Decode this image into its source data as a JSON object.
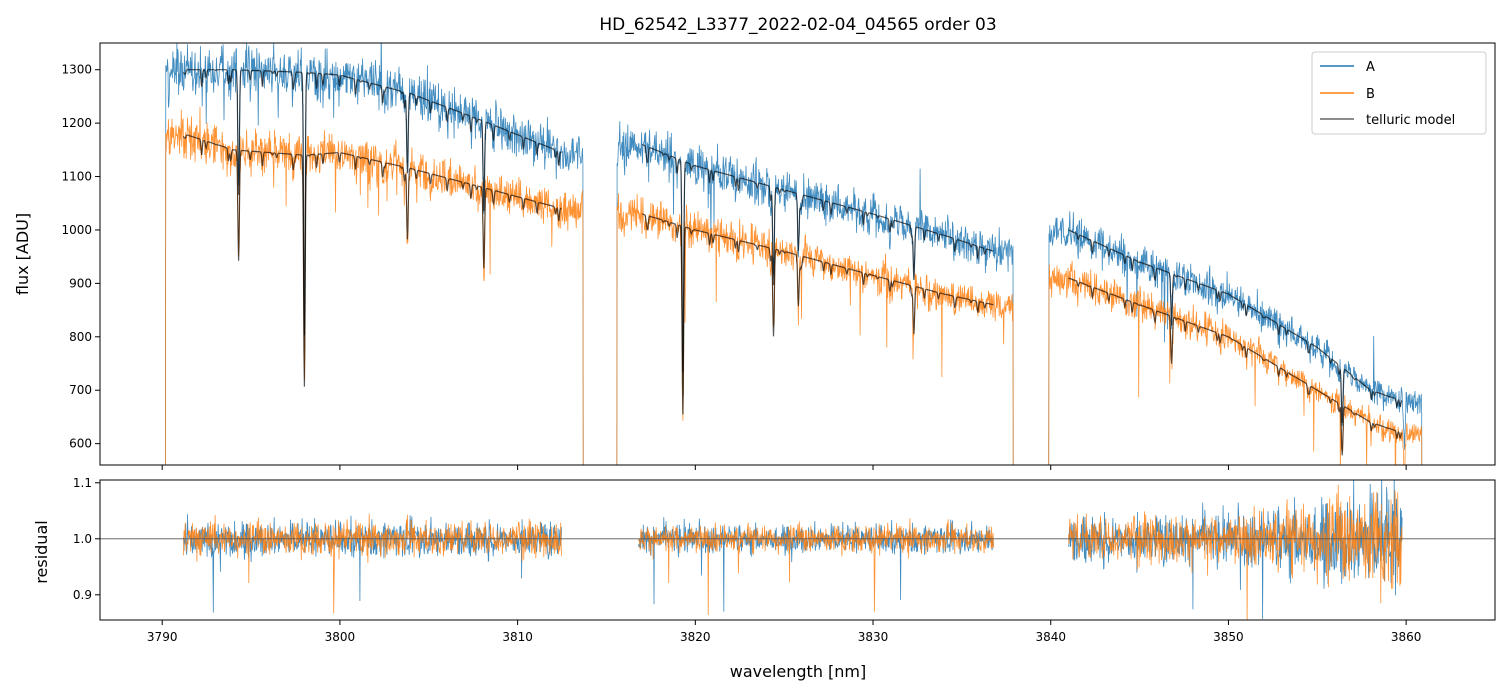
{
  "chart_data": [
    {
      "panel": "top",
      "type": "line",
      "title": "HD_62542_L3377_2022-02-04_04565  order 03",
      "xlabel": "",
      "ylabel": "flux [ADU]",
      "xlim": [
        3786.5,
        3865.0
      ],
      "ylim": [
        560,
        1350
      ],
      "xticks": [
        3790,
        3800,
        3810,
        3820,
        3830,
        3840,
        3850,
        3860
      ],
      "yticks": [
        600,
        700,
        800,
        900,
        1000,
        1100,
        1200,
        1300
      ],
      "legend": {
        "placement": "top-right",
        "entries": [
          "A",
          "B",
          "telluric model"
        ]
      },
      "segments": [
        {
          "x_start": 3790.1,
          "x_end": 3813.8,
          "model_x": [
            3791.2,
            3794,
            3798,
            3800,
            3804,
            3808,
            3812.5
          ],
          "A_cont": [
            1300,
            1300,
            1295,
            1290,
            1255,
            1205,
            1145
          ],
          "B_cont": [
            1180,
            1150,
            1140,
            1145,
            1115,
            1080,
            1040
          ]
        },
        {
          "x_start": 3815.5,
          "x_end": 3838.0,
          "model_x": [
            3817,
            3820,
            3825,
            3830,
            3834,
            3836.8
          ],
          "A_cont": [
            1160,
            1120,
            1075,
            1030,
            990,
            960
          ],
          "B_cont": [
            1030,
            1000,
            960,
            915,
            880,
            860
          ]
        },
        {
          "x_start": 3839.8,
          "x_end": 3861.0,
          "model_x": [
            3841.0,
            3845,
            3850,
            3855,
            3858,
            3859.8
          ],
          "A_cont": [
            1000,
            940,
            880,
            780,
            700,
            680
          ],
          "B_cont": [
            910,
            860,
            800,
            700,
            640,
            620
          ]
        }
      ],
      "absorption_lines": [
        {
          "x": 3794.3,
          "depth": 0.18
        },
        {
          "x": 3798.0,
          "depth": 0.38
        },
        {
          "x": 3803.8,
          "depth": 0.12
        },
        {
          "x": 3808.1,
          "depth": 0.14
        },
        {
          "x": 3819.3,
          "depth": 0.35
        },
        {
          "x": 3824.4,
          "depth": 0.17
        },
        {
          "x": 3825.8,
          "depth": 0.1
        },
        {
          "x": 3832.3,
          "depth": 0.1
        },
        {
          "x": 3846.8,
          "depth": 0.1
        },
        {
          "x": 3856.4,
          "depth": 0.14
        },
        {
          "x": 3859.9,
          "depth": 0.12
        }
      ],
      "series": [
        {
          "name": "A",
          "color": "#1f77b4"
        },
        {
          "name": "B",
          "color": "#ff7f0e"
        },
        {
          "name": "telluric model",
          "color": "#000000"
        }
      ]
    },
    {
      "panel": "bottom",
      "type": "line",
      "title": "",
      "xlabel": "wavelength [nm]",
      "ylabel": "residual",
      "xlim": [
        3786.5,
        3865.0
      ],
      "ylim": [
        0.855,
        1.105
      ],
      "xticks": [
        3790,
        3800,
        3810,
        3820,
        3830,
        3840,
        3850,
        3860
      ],
      "yticks": [
        0.9,
        1.0,
        1.1
      ],
      "reference_line": 1.0,
      "segments": [
        {
          "x_start": 3791.2,
          "x_end": 3812.5,
          "noise": 0.022
        },
        {
          "x_start": 3816.8,
          "x_end": 3836.8,
          "noise": 0.018
        },
        {
          "x_start": 3841.0,
          "x_end": 3859.8,
          "noise": 0.03
        }
      ],
      "series": [
        {
          "name": "A",
          "color": "#1f77b4"
        },
        {
          "name": "B",
          "color": "#ff7f0e"
        }
      ]
    }
  ]
}
